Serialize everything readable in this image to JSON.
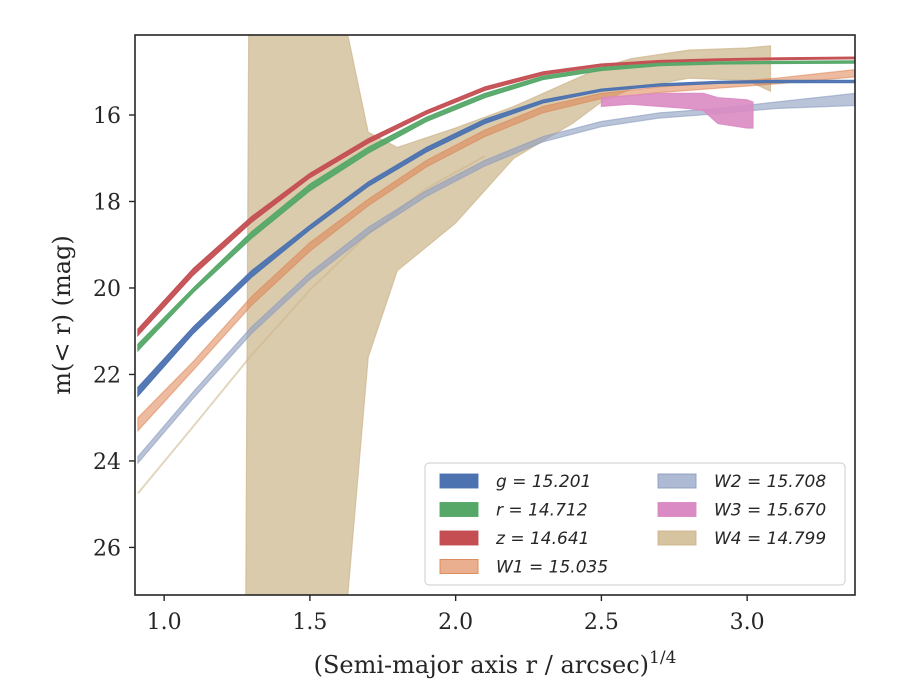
{
  "chart_data": {
    "type": "line",
    "xlabel": "(Semi-major axis r / arcsec)",
    "xlabel_exponent": "1/4",
    "ylabel": "m(< r) (mag)",
    "xlim": [
      0.9,
      3.37
    ],
    "ylim": [
      27.1,
      14.15
    ],
    "y_inverted": true,
    "x_ticks": [
      1.0,
      1.5,
      2.0,
      2.5,
      3.0
    ],
    "x_tick_labels": [
      "1.0",
      "1.5",
      "2.0",
      "2.5",
      "3.0"
    ],
    "y_ticks": [
      16,
      18,
      20,
      22,
      24,
      26
    ],
    "y_tick_labels": [
      "16",
      "18",
      "20",
      "22",
      "24",
      "26"
    ],
    "grid": false,
    "legend_placement": "lower-right",
    "series": [
      {
        "name": "g",
        "legend": "g = 15.201",
        "color": "#4c72b0",
        "alpha": 0.95,
        "x": [
          0.91,
          1.1,
          1.3,
          1.5,
          1.7,
          1.9,
          2.1,
          2.3,
          2.5,
          2.7,
          2.9,
          3.1,
          3.37
        ],
        "y_low": [
          22.3,
          20.9,
          19.6,
          18.55,
          17.55,
          16.75,
          16.1,
          15.65,
          15.4,
          15.28,
          15.22,
          15.2,
          15.2
        ],
        "y_high": [
          22.5,
          21.05,
          19.75,
          18.65,
          17.65,
          16.85,
          16.2,
          15.72,
          15.45,
          15.33,
          15.27,
          15.25,
          15.25
        ]
      },
      {
        "name": "r",
        "legend": "r = 14.712",
        "color": "#55a868",
        "alpha": 0.95,
        "x": [
          0.91,
          1.1,
          1.3,
          1.5,
          1.7,
          1.9,
          2.1,
          2.3,
          2.5,
          2.7,
          2.9,
          3.1,
          3.37
        ],
        "y_low": [
          21.3,
          20.0,
          18.7,
          17.6,
          16.75,
          16.05,
          15.5,
          15.1,
          14.9,
          14.8,
          14.77,
          14.76,
          14.75
        ],
        "y_high": [
          21.45,
          20.1,
          18.85,
          17.75,
          16.88,
          16.15,
          15.6,
          15.18,
          14.97,
          14.86,
          14.82,
          14.81,
          14.8
        ]
      },
      {
        "name": "z",
        "legend": "z = 14.641",
        "color": "#c44e52",
        "alpha": 0.95,
        "x": [
          0.91,
          1.1,
          1.3,
          1.5,
          1.7,
          1.9,
          2.1,
          2.3,
          2.5,
          2.7,
          2.9,
          3.1,
          3.37
        ],
        "y_low": [
          20.95,
          19.55,
          18.35,
          17.35,
          16.55,
          15.9,
          15.35,
          15.0,
          14.82,
          14.74,
          14.7,
          14.68,
          14.66
        ],
        "y_high": [
          21.1,
          19.7,
          18.48,
          17.45,
          16.65,
          15.98,
          15.43,
          15.07,
          14.87,
          14.78,
          14.74,
          14.72,
          14.7
        ]
      },
      {
        "name": "W1",
        "legend": "W1 = 15.035",
        "color": "#dd8452",
        "alpha": 0.55,
        "x": [
          0.91,
          1.1,
          1.3,
          1.5,
          1.7,
          1.9,
          2.1,
          2.3,
          2.5,
          2.7,
          2.9,
          3.1,
          3.37
        ],
        "y_low": [
          23.0,
          21.7,
          20.2,
          18.95,
          17.95,
          17.05,
          16.35,
          15.8,
          15.5,
          15.35,
          15.25,
          15.15,
          14.95
        ],
        "y_high": [
          23.3,
          21.9,
          20.4,
          19.15,
          18.1,
          17.2,
          16.5,
          15.95,
          15.62,
          15.48,
          15.38,
          15.28,
          15.12
        ]
      },
      {
        "name": "W2",
        "legend": "W2 = 15.708",
        "color": "#8c9dc0",
        "alpha": 0.6,
        "x": [
          0.91,
          1.1,
          1.3,
          1.5,
          1.7,
          1.9,
          2.1,
          2.3,
          2.5,
          2.7,
          2.9,
          3.1,
          3.37
        ],
        "y_low": [
          23.9,
          22.4,
          20.9,
          19.65,
          18.6,
          17.75,
          17.05,
          16.5,
          16.15,
          15.95,
          15.85,
          15.7,
          15.5
        ],
        "y_high": [
          24.05,
          22.55,
          21.05,
          19.8,
          18.75,
          17.88,
          17.18,
          16.62,
          16.27,
          16.07,
          15.97,
          15.85,
          15.78
        ]
      },
      {
        "name": "W3",
        "legend": "W3 = 15.670",
        "color": "#da8bc3",
        "alpha": 0.9,
        "x": [
          2.5,
          2.6,
          2.7,
          2.8,
          2.85,
          2.9,
          3.0,
          3.02
        ],
        "y_low": [
          15.8,
          15.75,
          15.8,
          15.85,
          15.9,
          16.2,
          16.3,
          16.3
        ],
        "y_high": [
          15.6,
          15.55,
          15.5,
          15.5,
          15.5,
          15.6,
          15.65,
          15.7
        ]
      },
      {
        "name": "W4",
        "legend": "W4 = 14.799",
        "color": "#ccb58a",
        "alpha": 0.7,
        "x": [
          1.28,
          1.29,
          1.5,
          1.6,
          1.63,
          1.7,
          1.8,
          2.0,
          2.2,
          2.4,
          2.5,
          2.6,
          2.8,
          3.0,
          3.08
        ],
        "y_low": [
          27.1,
          27.1,
          27.1,
          27.1,
          27.1,
          21.6,
          19.6,
          18.5,
          17.0,
          16.2,
          15.7,
          15.4,
          15.15,
          15.2,
          15.45
        ],
        "y_high": [
          27.1,
          14.15,
          14.15,
          14.15,
          14.15,
          16.4,
          16.75,
          16.3,
          15.8,
          15.2,
          14.9,
          14.7,
          14.5,
          14.45,
          14.4
        ]
      }
    ],
    "series_lines": [
      {
        "name": "W4",
        "color": "#ccb58a",
        "alpha": 0.55,
        "x": [
          0.91,
          1.1,
          1.3,
          1.5,
          1.7,
          1.9,
          2.1
        ],
        "y": [
          24.75,
          23.2,
          21.55,
          20.05,
          18.75,
          17.7,
          16.95
        ]
      }
    ]
  }
}
